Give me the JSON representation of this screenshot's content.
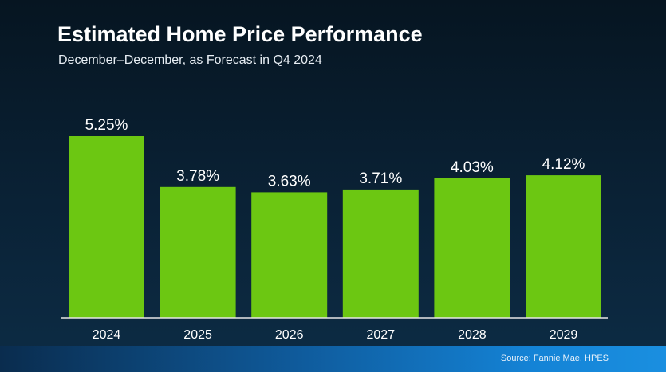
{
  "slide": {
    "title": "Estimated Home Price Performance",
    "subtitle": "December–December, as Forecast in Q4 2024",
    "source": "Source: Fannie Mae, HPES"
  },
  "colors": {
    "bar": "#6cc712",
    "baseline": "#e6e6e6",
    "label": "#ffffff"
  },
  "chart_data": {
    "type": "bar",
    "categories": [
      "2024",
      "2025",
      "2026",
      "2027",
      "2028",
      "2029"
    ],
    "values": [
      5.25,
      3.78,
      3.63,
      3.71,
      4.03,
      4.12
    ],
    "value_labels": [
      "5.25%",
      "3.78%",
      "3.63%",
      "3.71%",
      "4.03%",
      "4.12%"
    ],
    "title": "Estimated Home Price Performance",
    "subtitle": "December–December, as Forecast in Q4 2024",
    "xlabel": "",
    "ylabel": "",
    "ylim": [
      0,
      5.5
    ],
    "grid": false,
    "legend": "none"
  }
}
